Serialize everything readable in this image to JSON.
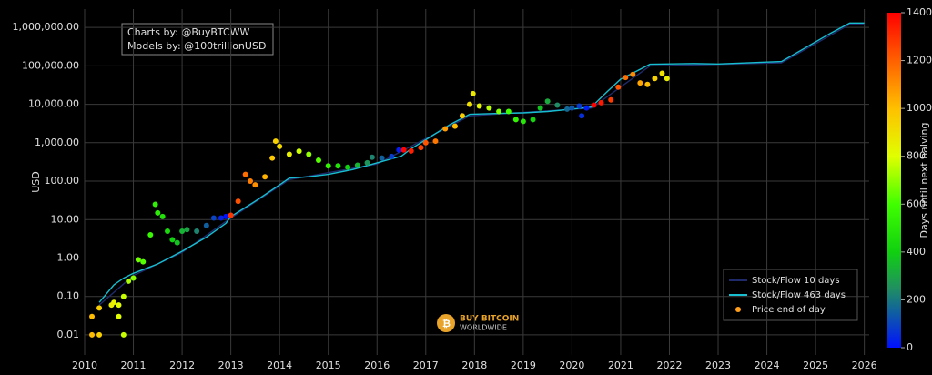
{
  "chart_data": {
    "type": "scatter",
    "ylabel": "USD",
    "annotations": [
      "Charts by: @BuyBTCWW",
      "Models by: @100trillionUSD"
    ],
    "logo": [
      "BUY BITCOIN",
      "WORLDWIDE"
    ],
    "xlim": [
      2010,
      2026.1
    ],
    "xticks": [
      2010,
      2011,
      2012,
      2013,
      2014,
      2015,
      2016,
      2017,
      2018,
      2019,
      2020,
      2021,
      2022,
      2023,
      2024,
      2025,
      2026
    ],
    "ylim": [
      0.003,
      3000000
    ],
    "ylog": true,
    "grid": true,
    "yticks": [
      0.01,
      {
        "value": 0.1,
        "label": "0.10"
      },
      {
        "value": 1,
        "label": "1.00"
      },
      {
        "value": 10,
        "label": "10.00"
      },
      {
        "value": 100,
        "label": "100.00"
      },
      {
        "value": 1000,
        "label": "1,000.00"
      },
      {
        "value": 10000,
        "label": "10,000.00"
      },
      {
        "value": 100000,
        "label": "100,000.00"
      },
      {
        "value": 1000000,
        "label": "1,000,000.00"
      }
    ],
    "legend": "bottom-right",
    "colorbar": {
      "title": "Days until next halving",
      "lim": [
        0,
        1400
      ],
      "ticks": [
        0,
        200,
        400,
        600,
        800,
        1000,
        1200,
        1400
      ],
      "colorscale": [
        [
          0,
          "#0010ff"
        ],
        [
          150,
          "#1060a0"
        ],
        [
          250,
          "#209060"
        ],
        [
          400,
          "#10d010"
        ],
        [
          600,
          "#40ff00"
        ],
        [
          800,
          "#e0ff00"
        ],
        [
          1000,
          "#ffc000"
        ],
        [
          1200,
          "#ff6000"
        ],
        [
          1400,
          "#ff0000"
        ]
      ]
    },
    "series": [
      {
        "name": "Stock/Flow 10 days",
        "kind": "line",
        "color": "#1f2a6b",
        "x": [
          2010.3,
          2011.0,
          2012.0,
          2013.0,
          2014.2,
          2016.0,
          2017.9,
          2020.4,
          2021.6,
          2024.3,
          2025.7,
          2026.0
        ],
        "values": [
          0.06,
          0.35,
          1.4,
          11,
          110,
          280,
          5000,
          8000,
          100000,
          120000,
          1200000,
          1200000
        ]
      },
      {
        "name": "Stock/Flow 463 days",
        "kind": "line",
        "color": "#17becf",
        "x": [
          2010.3,
          2010.6,
          2010.8,
          2011.0,
          2011.5,
          2012.0,
          2012.5,
          2012.9,
          2013.0,
          2013.5,
          2014.0,
          2014.2,
          2014.6,
          2015.0,
          2015.5,
          2016.0,
          2016.5,
          2016.7,
          2017.0,
          2017.5,
          2017.9,
          2018.5,
          2019.0,
          2019.5,
          2020.0,
          2020.4,
          2020.7,
          2021.0,
          2021.3,
          2021.6,
          2022.5,
          2023.0,
          2024.3,
          2024.8,
          2025.3,
          2025.7,
          2026.0
        ],
        "values": [
          0.07,
          0.2,
          0.3,
          0.4,
          0.7,
          1.5,
          3.5,
          8,
          12,
          30,
          80,
          120,
          130,
          150,
          200,
          300,
          450,
          700,
          1200,
          3000,
          5500,
          5800,
          6000,
          6500,
          7500,
          8500,
          20000,
          45000,
          70000,
          110000,
          115000,
          112000,
          130000,
          300000,
          700000,
          1300000,
          1300000
        ]
      },
      {
        "name": "Price end of day",
        "kind": "points",
        "color": "#ff9f1c",
        "x": [
          2010.15,
          2010.3,
          2010.15,
          2010.3,
          2010.7,
          2010.8,
          2010.55,
          2010.6,
          2010.7,
          2010.8,
          2010.9,
          2011.0,
          2011.1,
          2011.2,
          2011.35,
          2011.45,
          2011.5,
          2011.6,
          2011.7,
          2011.8,
          2011.9,
          2012.0,
          2012.1,
          2012.3,
          2012.5,
          2012.65,
          2012.8,
          2012.9,
          2013.0,
          2013.15,
          2013.3,
          2013.4,
          2013.5,
          2013.7,
          2013.85,
          2013.92,
          2014.0,
          2014.2,
          2014.4,
          2014.6,
          2014.8,
          2015.0,
          2015.2,
          2015.4,
          2015.6,
          2015.8,
          2015.9,
          2016.1,
          2016.3,
          2016.45,
          2016.55,
          2016.7,
          2016.9,
          2017.0,
          2017.2,
          2017.4,
          2017.6,
          2017.75,
          2017.9,
          2017.97,
          2018.1,
          2018.3,
          2018.5,
          2018.7,
          2018.85,
          2019.0,
          2019.2,
          2019.35,
          2019.5,
          2019.7,
          2019.9,
          2020.0,
          2020.15,
          2020.2,
          2020.3,
          2020.45,
          2020.6,
          2020.8,
          2020.95,
          2021.1,
          2021.25,
          2021.4,
          2021.55,
          2021.7,
          2021.85,
          2021.95
        ],
        "values": [
          0.01,
          0.01,
          0.03,
          0.05,
          0.03,
          0.01,
          0.06,
          0.07,
          0.06,
          0.1,
          0.25,
          0.3,
          0.9,
          0.8,
          4,
          25,
          15,
          12,
          5,
          3,
          2.5,
          5,
          5.5,
          5,
          7,
          11,
          11,
          12,
          13,
          30,
          150,
          100,
          80,
          130,
          400,
          1100,
          800,
          500,
          600,
          500,
          350,
          250,
          250,
          230,
          260,
          300,
          420,
          400,
          440,
          650,
          650,
          610,
          750,
          1000,
          1100,
          2300,
          2700,
          5000,
          10000,
          19000,
          9000,
          8000,
          6500,
          6500,
          4000,
          3600,
          4000,
          8000,
          12000,
          9500,
          7500,
          8000,
          9000,
          5000,
          8000,
          9500,
          11000,
          13000,
          28000,
          50000,
          60000,
          36000,
          33000,
          47000,
          64000,
          47000
        ],
        "days": [
          1007,
          953,
          1007,
          953,
          807,
          770,
          861,
          843,
          807,
          770,
          734,
          697,
          661,
          624,
          569,
          533,
          515,
          478,
          442,
          405,
          369,
          332,
          296,
          223,
          150,
          95,
          40,
          4,
          1285,
          1230,
          1175,
          1139,
          1102,
          1029,
          975,
          949,
          920,
          847,
          774,
          701,
          628,
          555,
          482,
          409,
          336,
          263,
          226,
          153,
          80,
          26,
          1391,
          1336,
          1263,
          1226,
          1153,
          1080,
          1007,
          953,
          898,
          872,
          825,
          752,
          679,
          606,
          551,
          496,
          423,
          369,
          314,
          241,
          168,
          131,
          77,
          58,
          22,
          1398,
          1351,
          1278,
          1223,
          1168,
          1113,
          1059,
          1004,
          949,
          894,
          858
        ]
      }
    ]
  }
}
